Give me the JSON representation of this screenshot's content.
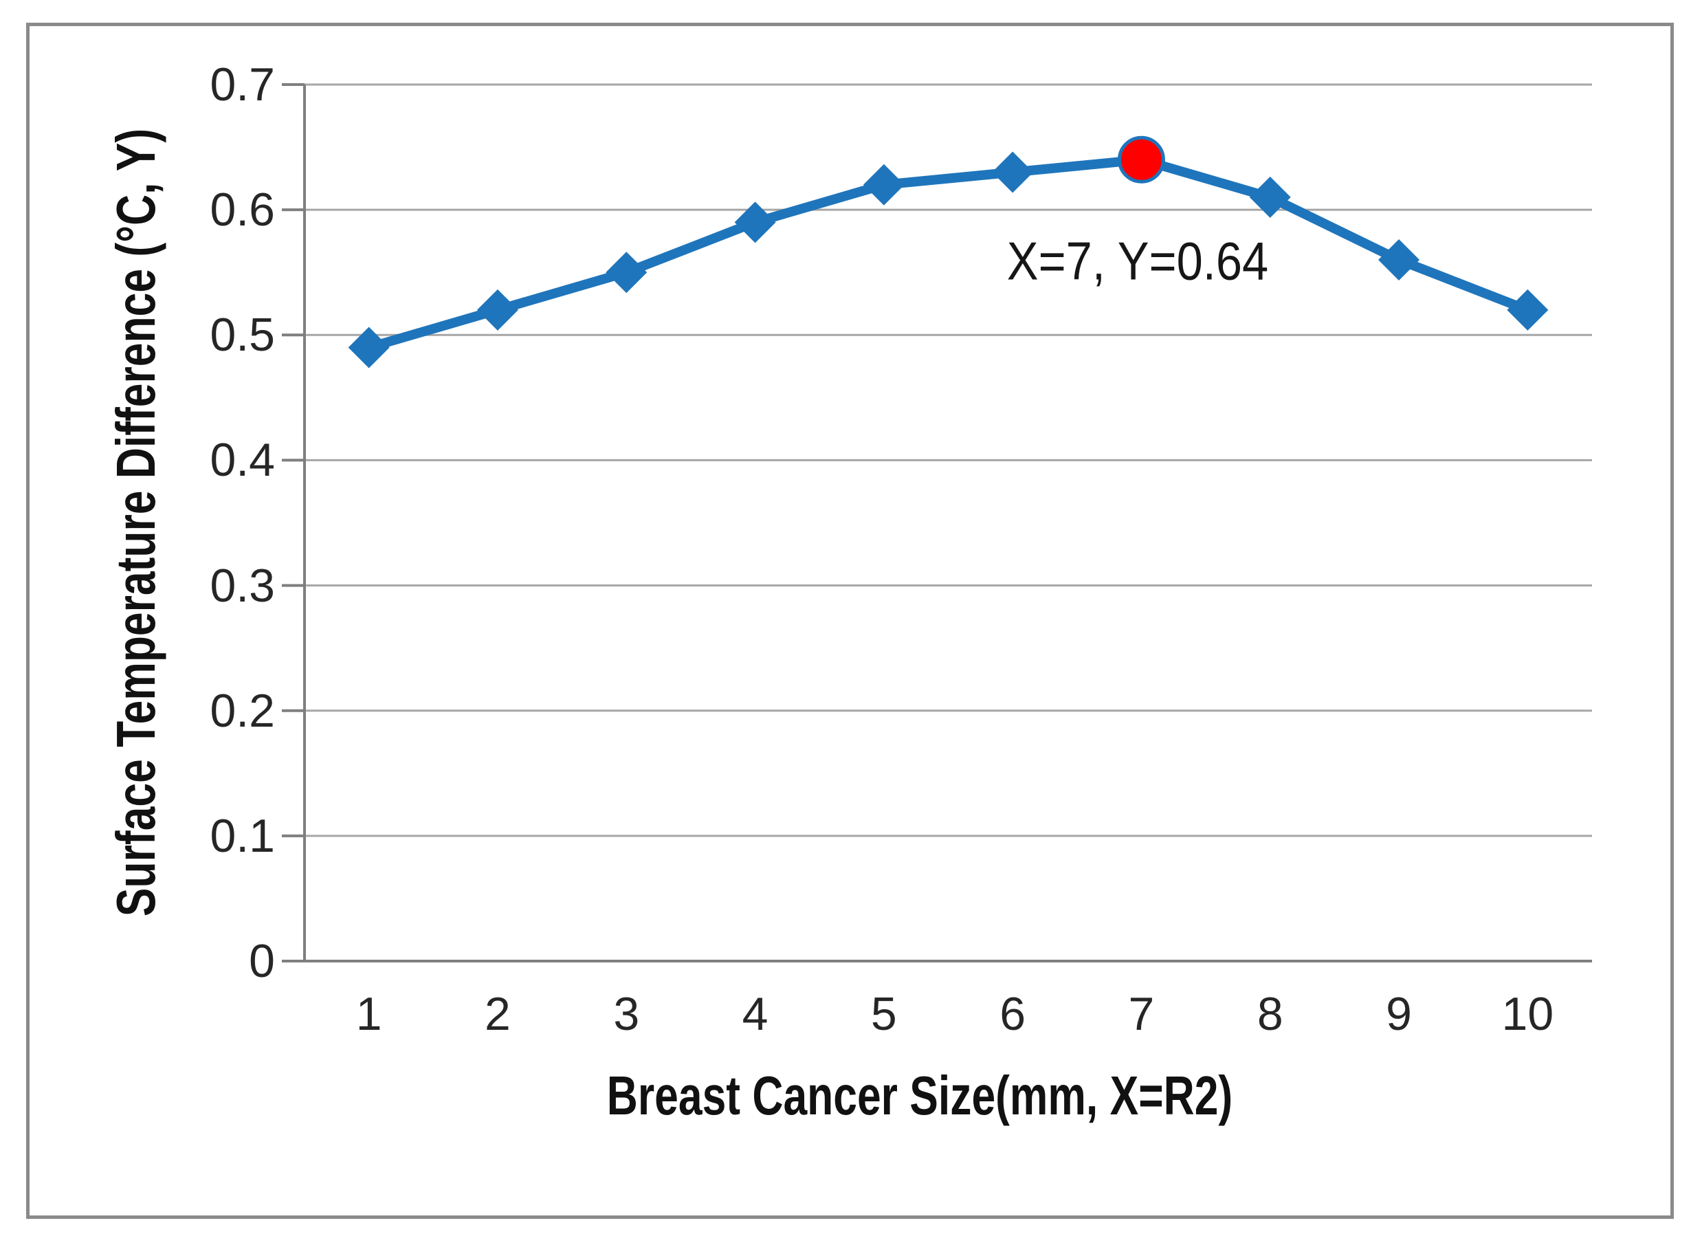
{
  "figure": {
    "background": "#FFFFFF",
    "frame_color": "#8A8A8A"
  },
  "chart_data": {
    "type": "line",
    "title": "",
    "xlabel": "Breast Cancer Size(mm, X=R2)",
    "ylabel": "Surface Temperature Difference (°C, Y)",
    "categories": [
      1,
      2,
      3,
      4,
      5,
      6,
      7,
      8,
      9,
      10
    ],
    "x_tick_labels": [
      "1",
      "2",
      "3",
      "4",
      "5",
      "6",
      "7",
      "8",
      "9",
      "10"
    ],
    "series": [
      {
        "values": [
          0.49,
          0.52,
          0.55,
          0.59,
          0.62,
          0.63,
          0.64,
          0.61,
          0.56,
          0.52
        ],
        "color": "#1F75BB",
        "marker": "diamond"
      }
    ],
    "y_ticks": [
      0,
      0.1,
      0.2,
      0.3,
      0.4,
      0.5,
      0.6,
      0.7
    ],
    "y_tick_labels": [
      "0",
      "0.1",
      "0.2",
      "0.3",
      "0.4",
      "0.5",
      "0.6",
      "0.7"
    ],
    "ylim": [
      0,
      0.7
    ],
    "grid": "horizontal-only",
    "legend_position": "none",
    "gridline_color": "#A6A6A6",
    "axis_color": "#7F7F7F",
    "text_color": "#262626",
    "highlight_point": {
      "x": 7,
      "y": 0.64,
      "fill": "#FF0000",
      "outline": "#1F75BB",
      "label": "X=7, Y=0.64"
    }
  },
  "annotation": {
    "text": "X=7, Y=0.64"
  }
}
